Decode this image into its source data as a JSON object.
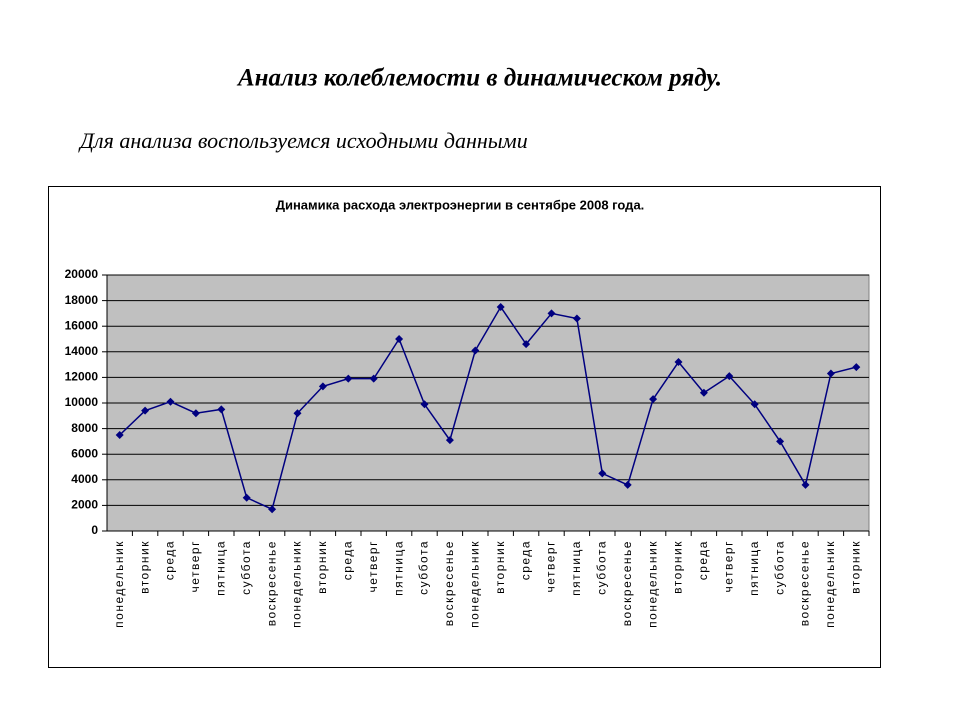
{
  "heading": "Анализ колеблемости в динамическом ряду.",
  "subheading": "Для анализа воспользуемся исходными данными",
  "chart_data": {
    "type": "line",
    "title": "Динамика расхода электроэнергии в сентябре 2008 года.",
    "categories": [
      "понедельник",
      "вторник",
      "среда",
      "четверг",
      "пятница",
      "суббота",
      "воскресенье",
      "понедельник",
      "вторник",
      "среда",
      "четверг",
      "пятница",
      "суббота",
      "воскресенье",
      "понедельник",
      "вторник",
      "среда",
      "четверг",
      "пятница",
      "суббота",
      "воскресенье",
      "понедельник",
      "вторник",
      "среда",
      "четверг",
      "пятница",
      "суббота",
      "воскресенье",
      "понедельник",
      "вторник"
    ],
    "values": [
      7500,
      9400,
      10100,
      9200,
      9500,
      2600,
      1700,
      9200,
      11300,
      11900,
      11900,
      15000,
      9900,
      7100,
      14100,
      17500,
      14600,
      17000,
      16600,
      4500,
      3600,
      10300,
      13200,
      10800,
      12100,
      9900,
      7000,
      3600,
      12300,
      12800
    ],
    "color": "#000080",
    "ylim": [
      0,
      20000
    ],
    "yticks": [
      0,
      2000,
      4000,
      6000,
      8000,
      10000,
      12000,
      14000,
      16000,
      18000,
      20000
    ],
    "grid": true
  }
}
